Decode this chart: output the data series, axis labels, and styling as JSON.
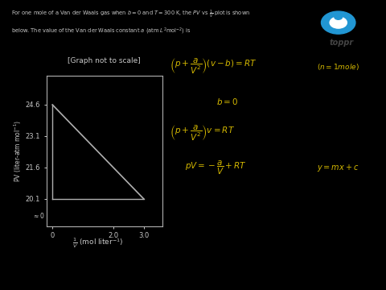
{
  "background_color": "#000000",
  "line_color": "#b0b0b0",
  "text_color": "#c8c8c8",
  "eq_color": "#d4b800",
  "title_text": "[Graph not to scale]",
  "xlabel_main": "$\\frac{1}{V}$",
  "xlabel_unit": " (mol liter$^{-1}$)",
  "ylabel": "PV (liter-atm mol$^{-1}$)",
  "problem_line1": "For one mole of a Van der Waals gas when $b = 0$ and $T = 300$ K, the $PV$ vs $\\frac{1}{V}$ plot is shown",
  "problem_line2": "below. The value of the Van der Waals constant $a$ (atm $L^2$mol$^{-2}$) is",
  "yticks": [
    20.1,
    21.6,
    23.1,
    24.6
  ],
  "xticks": [
    0,
    2.0,
    3.0
  ],
  "line_x": [
    0,
    3.0
  ],
  "line_y": [
    24.6,
    20.1
  ],
  "toppr_box_color": "#ffffff",
  "eq1": "$\\left( p + \\dfrac{a}{V^2} \\right)(v - b) = RT$",
  "eq2": "$b = 0$",
  "eq3": "$\\left( p + \\dfrac{a}{V^2} \\right) v = RT$",
  "eq4": "$pV = -\\dfrac{a}{V} + RT$",
  "eq5": "$(n = 1 mole)$",
  "eq6": "$y = mx + c$",
  "figsize": [
    4.8,
    3.6
  ],
  "dpi": 100
}
